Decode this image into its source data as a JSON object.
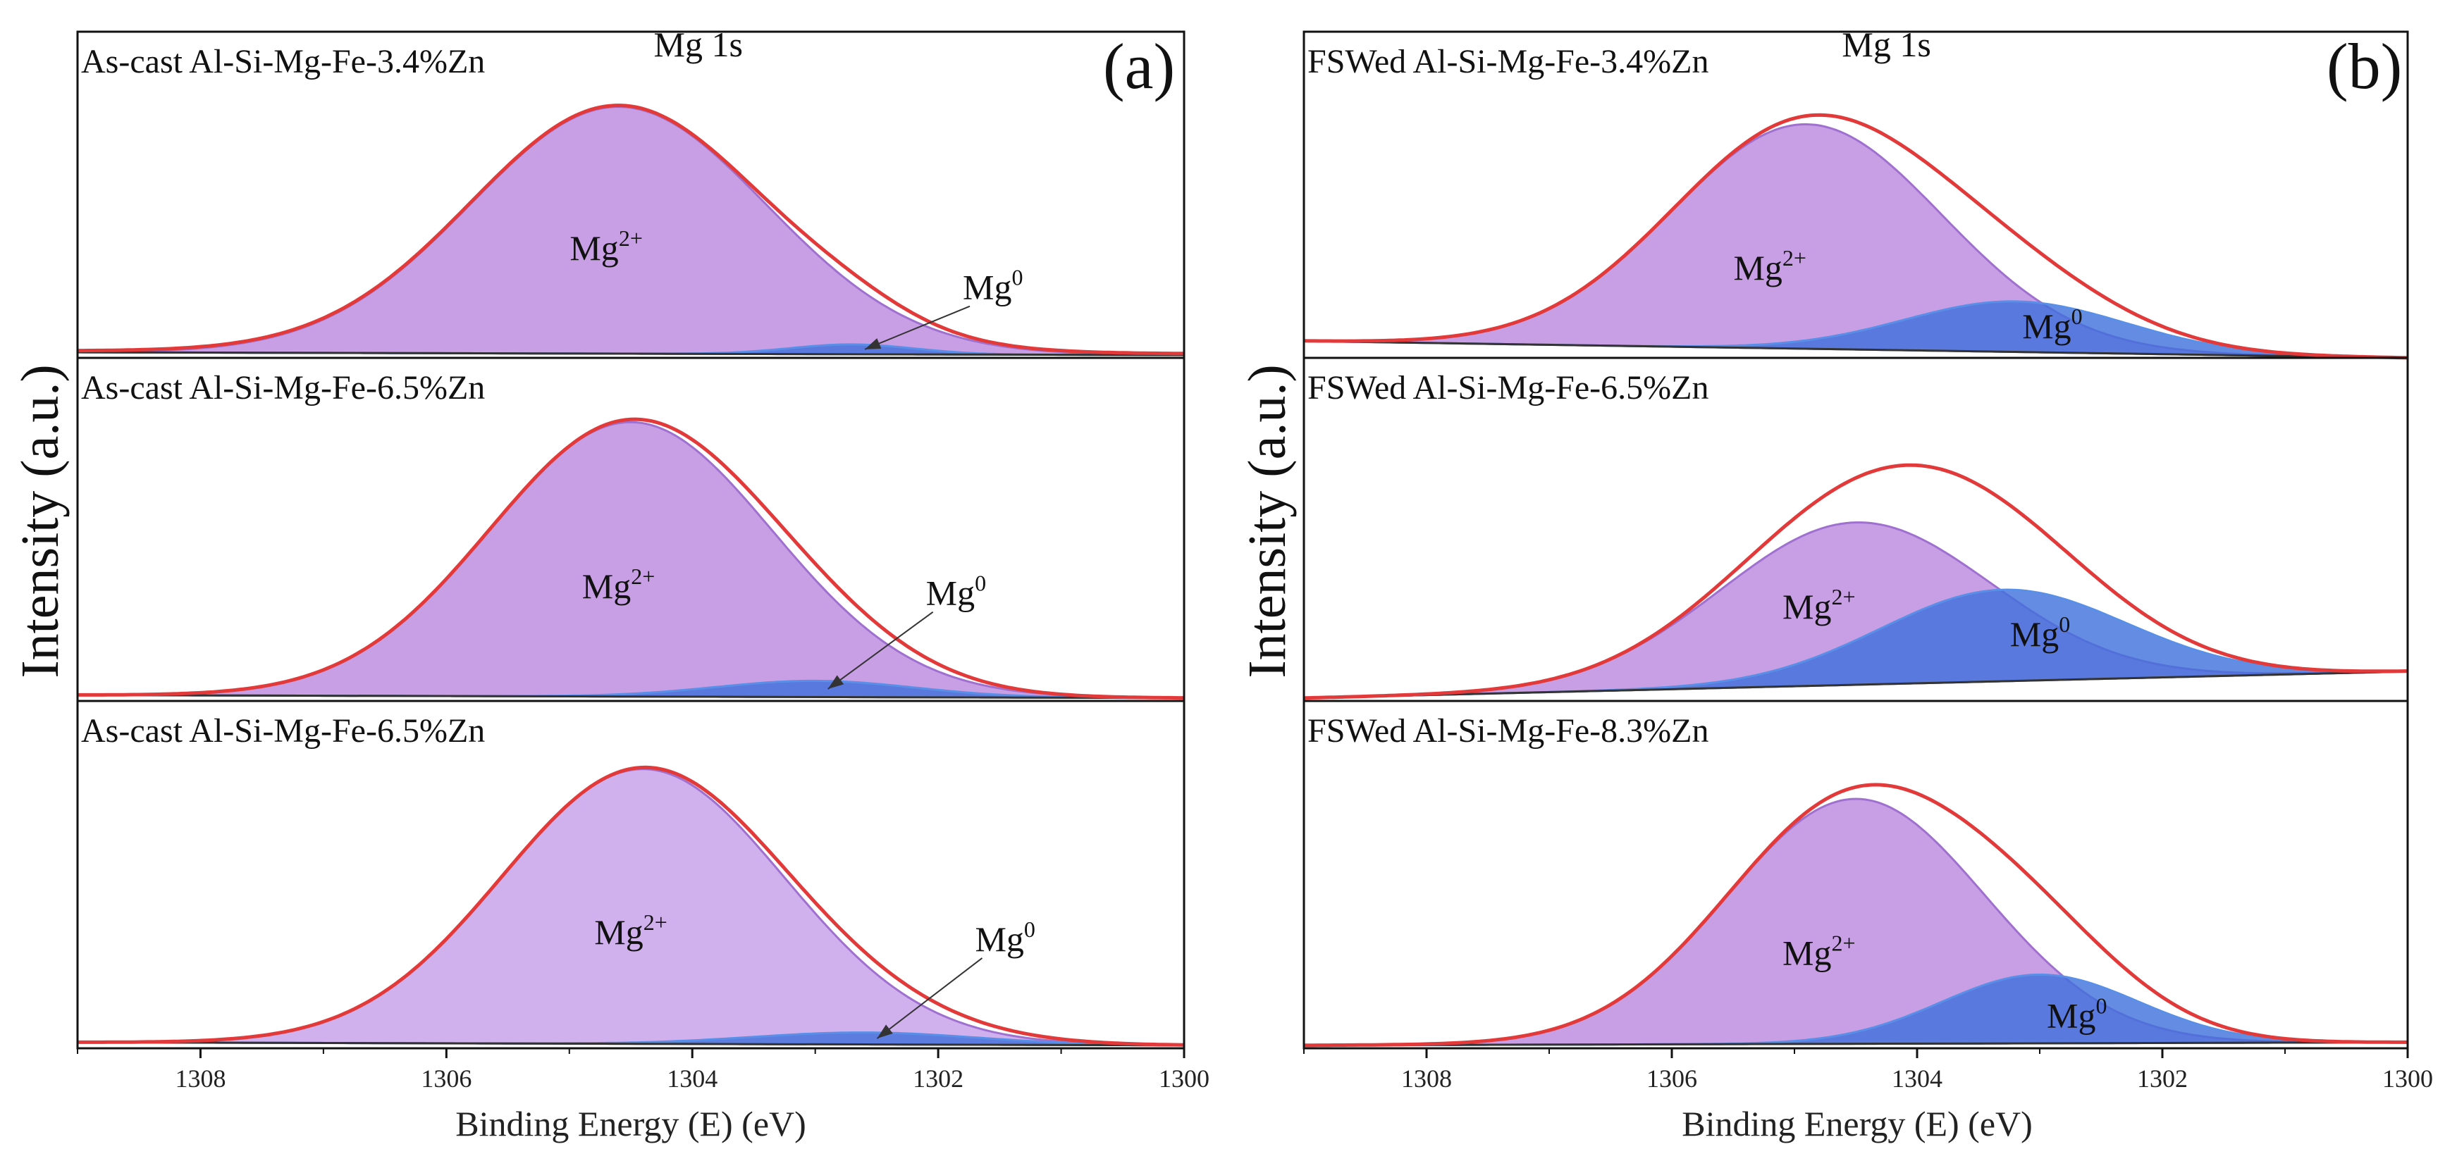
{
  "figure": {
    "y_axis_label": "Intensity (a.u.)",
    "x_axis_label": "Binding Energy (E) (eV)",
    "x_range": [
      1309.0,
      1300.0
    ],
    "x_ticks": [
      "1308",
      "1306",
      "1304",
      "1302",
      "1300"
    ],
    "colors": {
      "mg2_fill": "#b57fdc",
      "mg2_fill_light": "#c8a2ea",
      "mg2_line": "#a070d0",
      "mg0_fill": "#3f6fdc",
      "mg0_line": "#5a8fe8",
      "envelope": "#e23a3a",
      "background_line": "#333333"
    }
  },
  "chart_data": [
    {
      "type": "area",
      "panel": "(a)",
      "panel_label": "(a)",
      "xlabel": "Binding Energy (E) (eV)",
      "ylabel": "Intensity (a.u.)",
      "xlim": [
        1309.0,
        1300.0
      ],
      "subplots": [
        {
          "sample": "As-cast Al-Si-Mg-Fe-3.4%Zn",
          "core_level": "Mg 1s",
          "background": [
            0.02,
            0.01
          ],
          "mg2": {
            "label": "Mg",
            "sup": "2+",
            "center": 1304.6,
            "sigma": 1.2,
            "height": 0.88,
            "light": false
          },
          "mg0": {
            "label": "Mg",
            "sup": "0",
            "center": 1302.7,
            "sigma": 0.5,
            "height": 0.035
          },
          "envelope_offset": 0.005
        },
        {
          "sample": "As-cast Al-Si-Mg-Fe-6.5%Zn",
          "core_level": "",
          "background": [
            0.02,
            0.01
          ],
          "mg2": {
            "label": "Mg",
            "sup": "2+",
            "center": 1304.5,
            "sigma": 1.15,
            "height": 0.93,
            "light": false
          },
          "mg0": {
            "label": "Mg",
            "sup": "0",
            "center": 1303.0,
            "sigma": 0.8,
            "height": 0.055
          },
          "envelope_offset": 0.0
        },
        {
          "sample": "As-cast Al-Si-Mg-Fe-6.5%Zn",
          "core_level": "",
          "background": [
            0.02,
            0.01
          ],
          "mg2": {
            "label": "Mg",
            "sup": "2+",
            "center": 1304.4,
            "sigma": 1.15,
            "height": 0.92,
            "light": true
          },
          "mg0": {
            "label": "Mg",
            "sup": "0",
            "center": 1302.6,
            "sigma": 0.9,
            "height": 0.04
          },
          "envelope_offset": 0.0
        }
      ]
    },
    {
      "type": "area",
      "panel": "(b)",
      "panel_label": "(b)",
      "xlabel": "Binding Energy (E) (eV)",
      "ylabel": "Intensity (a.u.)",
      "xlim": [
        1309.0,
        1300.0
      ],
      "subplots": [
        {
          "sample": "FSWed Al-Si-Mg-Fe-3.4%Zn",
          "core_level": "Mg 1s",
          "background": [
            0.06,
            0.0
          ],
          "mg2": {
            "label": "Mg",
            "sup": "2+",
            "center": 1304.9,
            "sigma": 1.1,
            "height": 0.8,
            "light": false
          },
          "mg0": {
            "label": "Mg",
            "sup": "0",
            "center": 1303.2,
            "sigma": 0.9,
            "height": 0.18
          },
          "envelope_offset": 0.0
        },
        {
          "sample": "FSWed Al-Si-Mg-Fe-6.5%Zn",
          "core_level": "",
          "background": [
            0.01,
            0.1
          ],
          "mg2": {
            "label": "Mg",
            "sup": "2+",
            "center": 1304.5,
            "sigma": 1.1,
            "height": 0.55,
            "light": false
          },
          "mg0": {
            "label": "Mg",
            "sup": "0",
            "center": 1303.3,
            "sigma": 1.0,
            "height": 0.31
          },
          "envelope_offset": 0.0
        },
        {
          "sample": "FSWed Al-Si-Mg-Fe-8.3%Zn",
          "core_level": "",
          "background": [
            0.01,
            0.02
          ],
          "mg2": {
            "label": "Mg",
            "sup": "2+",
            "center": 1304.5,
            "sigma": 1.05,
            "height": 0.82,
            "light": false
          },
          "mg0": {
            "label": "Mg",
            "sup": "0",
            "center": 1303.0,
            "sigma": 0.8,
            "height": 0.23
          },
          "envelope_offset": 0.0
        }
      ]
    }
  ]
}
